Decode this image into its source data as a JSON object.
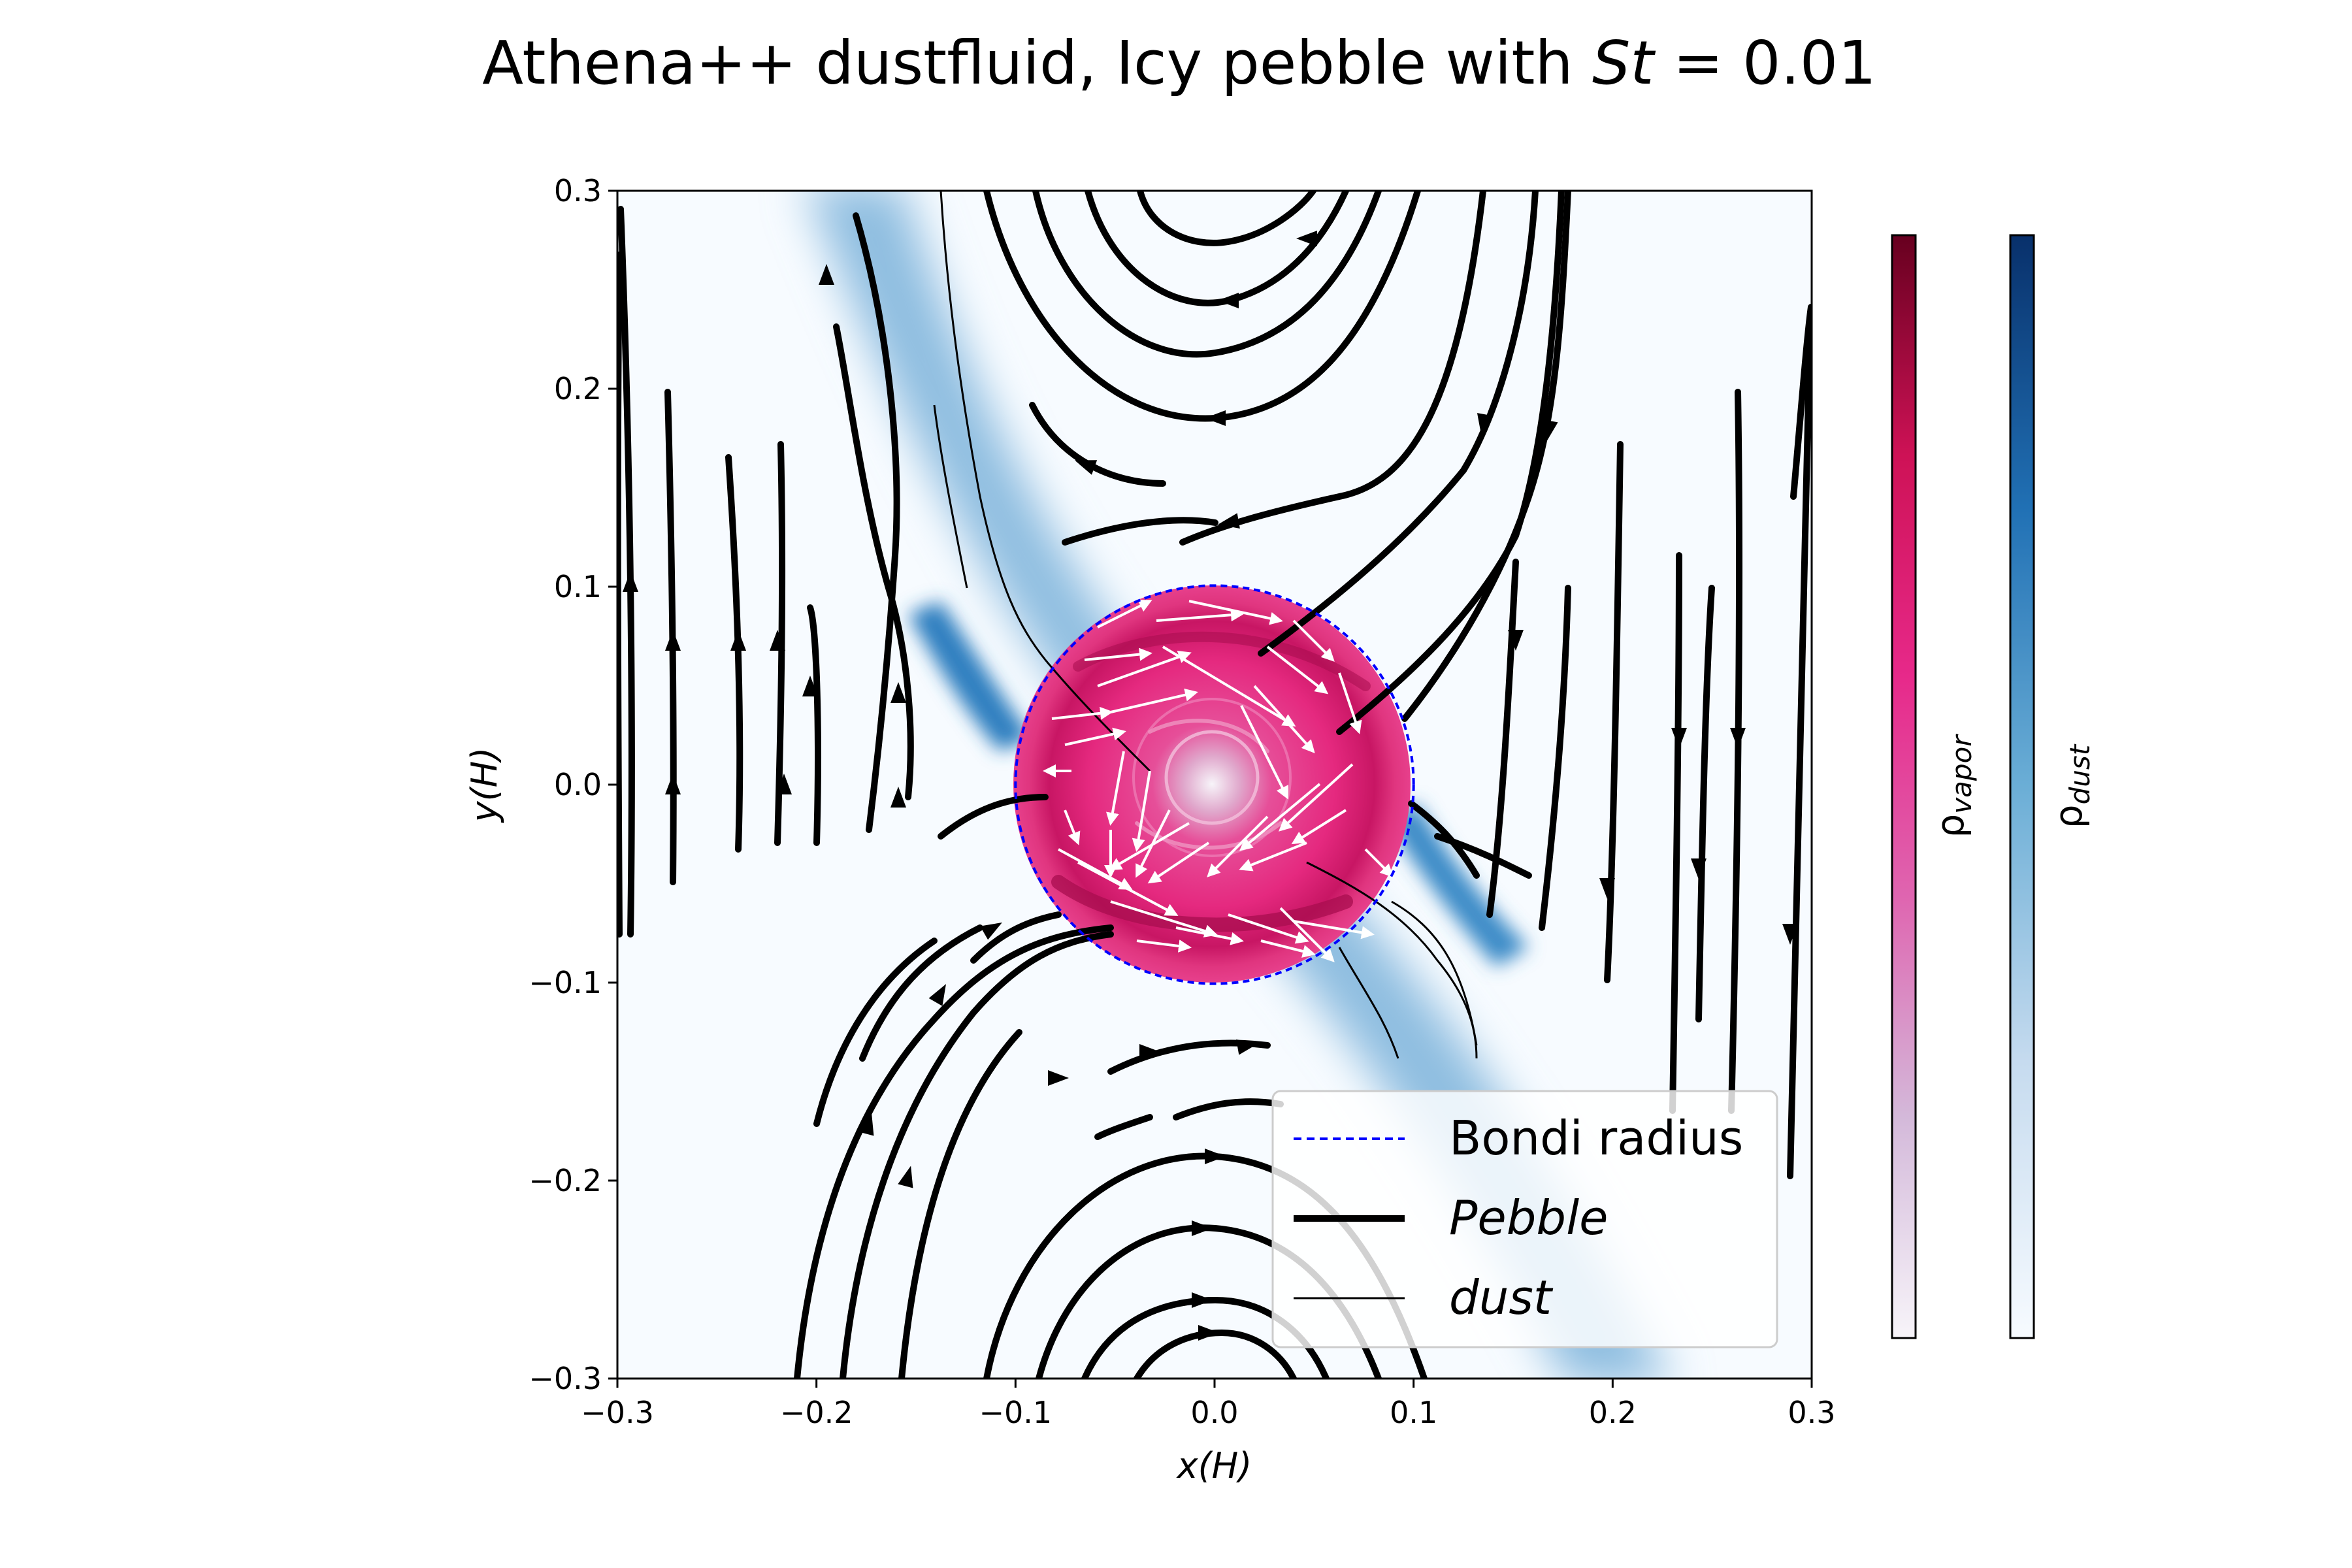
{
  "chart_data": {
    "type": "streamplot",
    "title": "Athena++ dustfluid, Icy pebble with St = 0.01",
    "title_main": "Athena++ dustfluid, Icy pebble with ",
    "title_math": "St",
    "title_eq": " = 0.01",
    "xlabel": "x(H)",
    "ylabel": "y(H)",
    "xlim": [
      -0.3,
      0.3
    ],
    "ylim": [
      -0.3,
      0.3
    ],
    "xticks": [
      "−0.3",
      "−0.2",
      "−0.1",
      "0.0",
      "0.1",
      "0.2",
      "0.3"
    ],
    "yticks": [
      "−0.3",
      "−0.2",
      "−0.1",
      "0.0",
      "0.1",
      "0.2",
      "0.3"
    ],
    "bondi_radius": 0.1,
    "legend": {
      "placement": "lower-right",
      "entries": [
        {
          "label": "Bondi radius",
          "style": "dashed",
          "color": "#0000ff"
        },
        {
          "label": "Pebble",
          "style": "thick",
          "color": "#000000"
        },
        {
          "label": "dust",
          "style": "thin",
          "color": "#000000"
        }
      ]
    },
    "colorbars": [
      {
        "label": "ρvapor",
        "symbol": "ρ",
        "subscript": "vapor",
        "colormap": "PuRd",
        "colors": [
          "#f7f4f9",
          "#d4b9da",
          "#df65b0",
          "#e7298a",
          "#ce1256",
          "#67001f"
        ]
      },
      {
        "label": "ρdust",
        "symbol": "ρ",
        "subscript": "dust",
        "colormap": "Blues",
        "colors": [
          "#f7fbff",
          "#c6dbef",
          "#6baed6",
          "#2171b5",
          "#08306b"
        ]
      }
    ],
    "colors": {
      "pebble_streamline": "#000000",
      "vapor_arrows": "#ffffff",
      "bondi": "#0000ff"
    }
  }
}
